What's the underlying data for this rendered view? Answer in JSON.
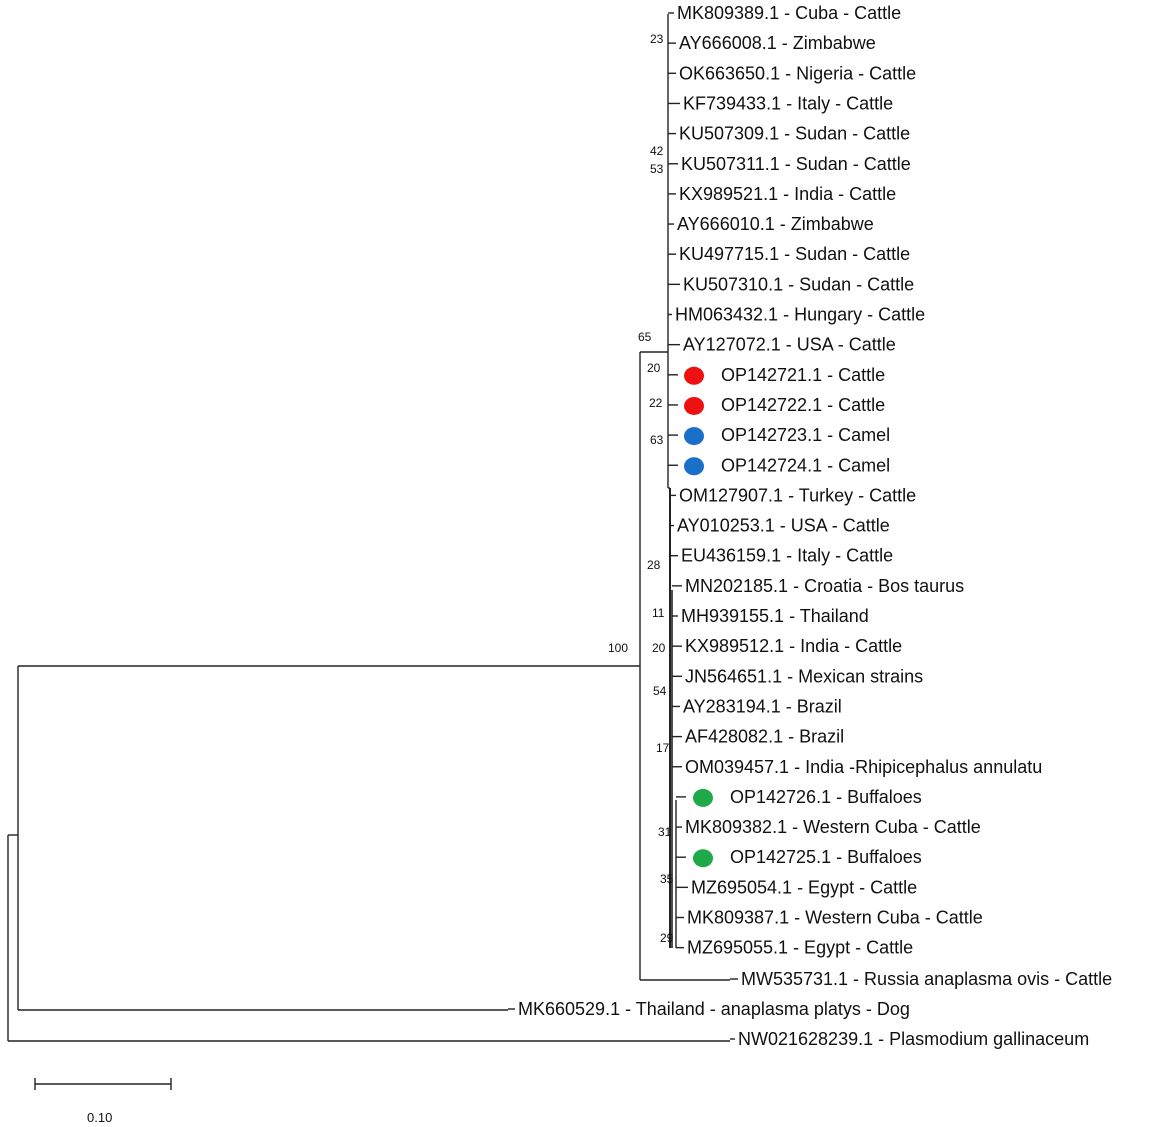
{
  "tree": {
    "taxa": [
      {
        "label": "MK809389.1 - Cuba - Cattle"
      },
      {
        "label": "AY666008.1 - Zimbabwe"
      },
      {
        "label": "OK663650.1 - Nigeria - Cattle"
      },
      {
        "label": "KF739433.1 - Italy - Cattle"
      },
      {
        "label": "KU507309.1 - Sudan - Cattle"
      },
      {
        "label": "KU507311.1 - Sudan - Cattle"
      },
      {
        "label": "KX989521.1 - India - Cattle"
      },
      {
        "label": "AY666010.1 - Zimbabwe"
      },
      {
        "label": "KU497715.1 - Sudan - Cattle"
      },
      {
        "label": "KU507310.1 - Sudan - Cattle"
      },
      {
        "label": "HM063432.1 - Hungary - Cattle"
      },
      {
        "label": "AY127072.1 - USA - Cattle"
      },
      {
        "label": "OP142721.1 - Cattle",
        "marker": "red"
      },
      {
        "label": "OP142722.1 - Cattle",
        "marker": "red"
      },
      {
        "label": "OP142723.1 - Camel",
        "marker": "blue"
      },
      {
        "label": "OP142724.1 - Camel",
        "marker": "blue"
      },
      {
        "label": "OM127907.1 - Turkey - Cattle"
      },
      {
        "label": "AY010253.1 - USA - Cattle"
      },
      {
        "label": "EU436159.1 - Italy - Cattle"
      },
      {
        "label": "MN202185.1 - Croatia - Bos taurus"
      },
      {
        "label": "MH939155.1 - Thailand"
      },
      {
        "label": "KX989512.1 - India - Cattle"
      },
      {
        "label": "JN564651.1 - Mexican strains"
      },
      {
        "label": "AY283194.1 - Brazil"
      },
      {
        "label": "AF428082.1 - Brazil"
      },
      {
        "label": "OM039457.1 - India -Rhipicephalus annulatu"
      },
      {
        "label": "OP142726.1 - Buffaloes",
        "marker": "green"
      },
      {
        "label": "MK809382.1 - Western Cuba - Cattle"
      },
      {
        "label": "OP142725.1 - Buffaloes",
        "marker": "green"
      },
      {
        "label": "MZ695054.1 - Egypt - Cattle"
      },
      {
        "label": "MK809387.1 - Western Cuba - Cattle"
      },
      {
        "label": "MZ695055.1 - Egypt - Cattle"
      },
      {
        "label": "MW535731.1 - Russia anaplasma ovis - Cattle"
      },
      {
        "label": "MK660529.1 - Thailand - anaplasma platys - Dog"
      },
      {
        "label": "NW021628239.1 - Plasmodium gallinaceum"
      }
    ],
    "bootstrap_values": [
      "23",
      "42",
      "53",
      "65",
      "20",
      "22",
      "63",
      "28",
      "11",
      "20",
      "54",
      "17",
      "31",
      "35",
      "29",
      "100"
    ],
    "marker_colors": {
      "red": "#ee1111",
      "blue": "#1a6fc9",
      "green": "#1faa4a"
    },
    "scale_bar": {
      "length": 0.1,
      "label": "0.10"
    }
  }
}
